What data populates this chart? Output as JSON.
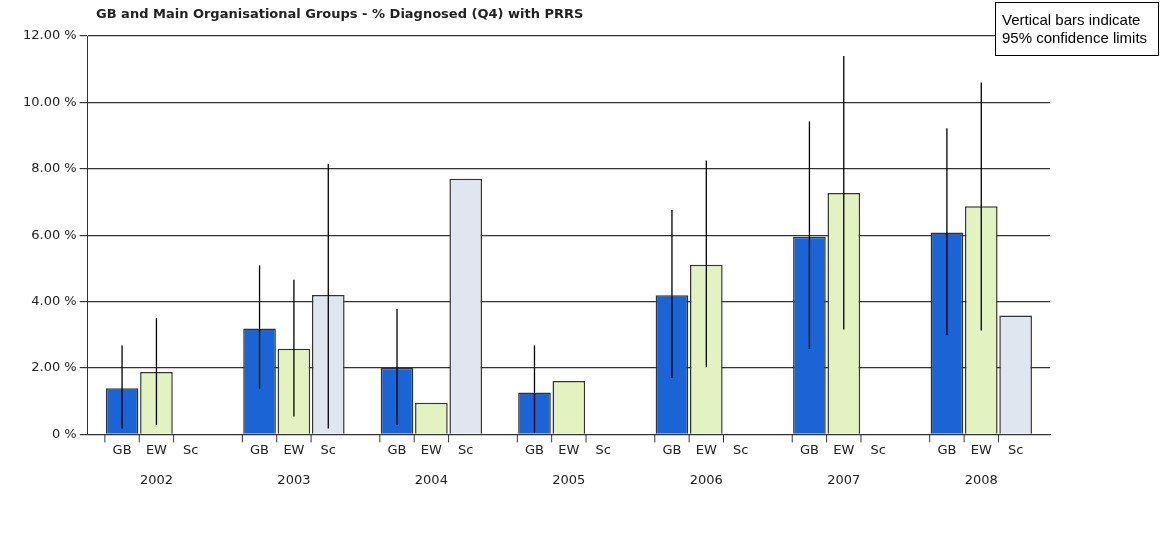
{
  "chart_data": {
    "type": "bar",
    "title": "GB and Main Organisational Groups -  % Diagnosed (Q4) with PRRS",
    "categories": [
      "2002",
      "2003",
      "2004",
      "2005",
      "2006",
      "2007",
      "2008"
    ],
    "series": [
      {
        "name": "GB",
        "color": "#1a64d6",
        "values": [
          1.39,
          3.19,
          2.0,
          1.26,
          4.19,
          5.95,
          6.08
        ],
        "errors": [
          [
            0.18,
            2.68
          ],
          [
            1.38,
            5.09
          ],
          [
            0.28,
            3.78
          ],
          [
            0.05,
            2.68
          ],
          [
            1.7,
            6.76
          ],
          [
            2.57,
            9.43
          ],
          [
            2.99,
            9.22
          ]
        ]
      },
      {
        "name": "EW",
        "color": "#e2f2c0",
        "values": [
          1.88,
          2.58,
          0.95,
          1.61,
          5.11,
          7.27,
          6.87
        ],
        "errors": [
          [
            0.28,
            3.51
          ],
          [
            0.54,
            4.66
          ],
          null,
          null,
          [
            2.02,
            8.25
          ],
          [
            3.16,
            11.4
          ],
          [
            3.13,
            10.6
          ]
        ]
      },
      {
        "name": "Sc",
        "color": "#e0e6ef",
        "values": [
          null,
          4.2,
          7.7,
          null,
          null,
          null,
          3.58
        ],
        "errors": [
          null,
          [
            0.18,
            8.15
          ],
          null,
          null,
          null,
          null,
          null
        ]
      }
    ],
    "ylim": [
      0,
      12
    ],
    "yticks": [
      {
        "value": 0,
        "label": "0 %"
      },
      {
        "value": 2,
        "label": "2.00 %"
      },
      {
        "value": 4,
        "label": "4.00 %"
      },
      {
        "value": 6,
        "label": "6.00 %"
      },
      {
        "value": 8,
        "label": "8.00 %"
      },
      {
        "value": 10,
        "label": "10.00 %"
      },
      {
        "value": 12,
        "label": "12.00 %"
      }
    ],
    "grid": "y",
    "annotations": [
      "Vertical bars indicate 95% confidence limits"
    ]
  }
}
